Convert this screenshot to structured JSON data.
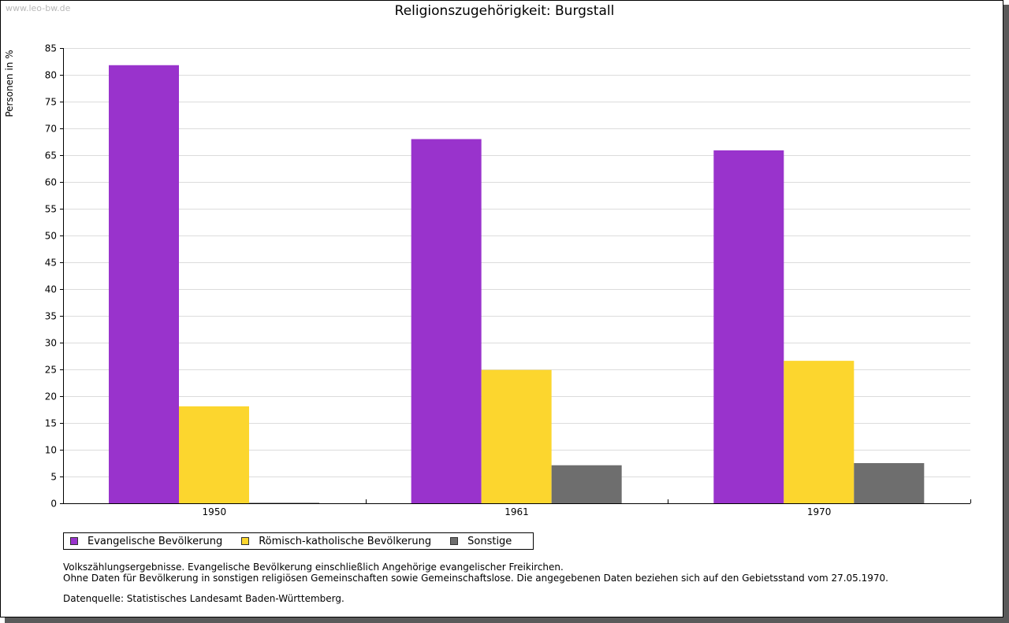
{
  "watermark": "www.leo-bw.de",
  "chart_data": {
    "type": "bar",
    "title": "Religionszugehörigkeit: Burgstall",
    "xlabel": "",
    "ylabel": "Personen in %",
    "categories": [
      "1950",
      "1961",
      "1970"
    ],
    "series": [
      {
        "name": "Evangelische Bevölkerung",
        "color": "#9933cc",
        "values": [
          81.8,
          68.0,
          65.9
        ]
      },
      {
        "name": "Römisch-katholische Bevölkerung",
        "color": "#fcd62e",
        "values": [
          18.1,
          24.9,
          26.6
        ]
      },
      {
        "name": "Sonstige",
        "color": "#6e6e6e",
        "values": [
          0.1,
          7.1,
          7.5
        ]
      }
    ],
    "ylim": [
      0,
      85
    ],
    "yticks": [
      "0",
      "5",
      "10",
      "15",
      "20",
      "25",
      "30",
      "35",
      "40",
      "45",
      "50",
      "55",
      "60",
      "65",
      "70",
      "75",
      "80",
      "85"
    ],
    "grid": true,
    "legend": "bottom-left"
  },
  "notes": {
    "line1": "Volkszählungsergebnisse. Evangelische Bevölkerung einschließlich Angehörige evangelischer Freikirchen.",
    "line2": "Ohne Daten für Bevölkerung in sonstigen religiösen Gemeinschaften sowie Gemeinschaftslose. Die angegebenen Daten beziehen sich auf den Gebietsstand vom 27.05.1970.",
    "source": "Datenquelle: Statistisches Landesamt Baden-Württemberg."
  }
}
